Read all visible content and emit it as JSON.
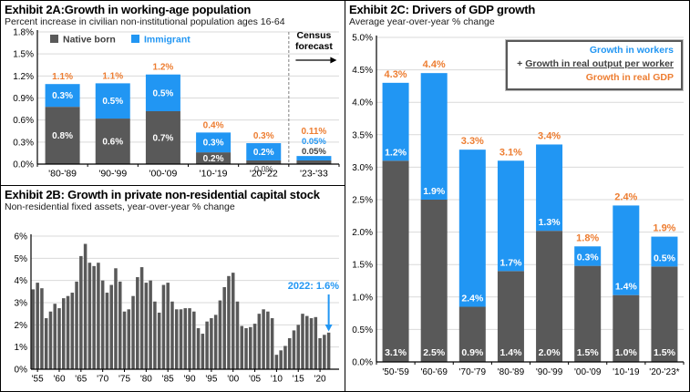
{
  "colors": {
    "blue": "#2196F3",
    "gray": "#595959",
    "orange": "#ED7D31",
    "dark_text": "#404040",
    "grid": "#D9D9D9",
    "axis": "#000000"
  },
  "chart_data": [
    {
      "id": "2A",
      "type": "bar",
      "stacked": true,
      "title": "Exhibit 2A:Growth in working-age population",
      "subtitle": "Percent increase in civilian non-institutional population ages 16-64",
      "categories": [
        "'80-'89",
        "'90-'99",
        "'00-'09",
        "'10-'19",
        "'20-'22",
        "'23-'33"
      ],
      "series": [
        {
          "name": "Native born",
          "color": "gray",
          "values": [
            0.8,
            0.6,
            0.7,
            0.2,
            0.0,
            0.05
          ],
          "labels": [
            "0.8%",
            "0.6%",
            "0.7%",
            "0.2%",
            "0.0%",
            "0.05%"
          ],
          "heights": [
            0.78,
            0.62,
            0.72,
            0.16,
            0.05,
            0.05
          ],
          "label_pos": [
            "in",
            "in",
            "in",
            "in",
            "below",
            "stack"
          ]
        },
        {
          "name": "Immigrant",
          "color": "blue",
          "values": [
            0.3,
            0.5,
            0.5,
            0.3,
            0.2,
            0.05
          ],
          "labels": [
            "0.3%",
            "0.5%",
            "0.5%",
            "0.3%",
            "0.2%",
            "0.05%"
          ],
          "heights": [
            0.31,
            0.48,
            0.5,
            0.27,
            0.235,
            0.06
          ],
          "label_pos": [
            "in",
            "in",
            "in",
            "in",
            "in",
            "stack"
          ]
        }
      ],
      "totals": [
        "1.1%",
        "1.1%",
        "1.2%",
        "0.4%",
        "0.3%",
        "0.11%"
      ],
      "ylim": [
        0,
        1.8
      ],
      "yticks": [
        "0.0%",
        "0.3%",
        "0.6%",
        "0.9%",
        "1.2%",
        "1.5%",
        "1.8%"
      ],
      "forecast_label": "Census forecast",
      "legend_position": "top-in-plot",
      "grid": true
    },
    {
      "id": "2B",
      "type": "bar",
      "title": "Exhibit 2B: Growth in private non-residential capital stock",
      "subtitle": "Non-residential fixed assets, year-over-year % change",
      "start_year": 1954,
      "end_year": 2022,
      "values": [
        3.6,
        3.9,
        3.65,
        2.3,
        2.6,
        2.95,
        2.75,
        3.2,
        3.3,
        3.45,
        3.95,
        5.1,
        5.65,
        4.8,
        4.65,
        4.8,
        4.0,
        3.45,
        3.8,
        4.55,
        3.95,
        2.6,
        2.7,
        3.3,
        4.15,
        4.6,
        3.9,
        4.0,
        3.05,
        2.55,
        3.8,
        3.9,
        3.05,
        2.7,
        2.7,
        2.75,
        2.75,
        2.6,
        1.85,
        1.6,
        2.15,
        2.3,
        2.45,
        3.1,
        3.7,
        4.2,
        4.35,
        3.05,
        1.95,
        1.85,
        1.9,
        2.05,
        2.5,
        2.7,
        2.6,
        2.3,
        0.65,
        0.85,
        1.05,
        1.4,
        1.75,
        2.0,
        2.5,
        2.4,
        2.3,
        2.35,
        1.4,
        1.55,
        1.65
      ],
      "xticks": [
        "'55",
        "'60",
        "'65",
        "'70",
        "'75",
        "'80",
        "'85",
        "'90",
        "'95",
        "'00",
        "'05",
        "'10",
        "'15",
        "'20"
      ],
      "xtick_years": [
        1955,
        1960,
        1965,
        1970,
        1975,
        1980,
        1985,
        1990,
        1995,
        2000,
        2005,
        2010,
        2015,
        2020
      ],
      "ylim": [
        0,
        6
      ],
      "yticks": [
        "0%",
        "1%",
        "2%",
        "3%",
        "4%",
        "5%",
        "6%"
      ],
      "annotation": {
        "text": "2022: 1.6%",
        "year": 2022
      },
      "grid": true
    },
    {
      "id": "2C",
      "type": "bar",
      "stacked": true,
      "title": "Exhibit 2C: Drivers of GDP growth",
      "subtitle": "Average year-over-year % change",
      "categories": [
        "'50-'59",
        "'60-'69",
        "'70-'79",
        "'80-'89",
        "'90-'99",
        "'00-'09",
        "'10-'19",
        "'20-'23*"
      ],
      "series": [
        {
          "name": "Growth in real output per worker",
          "color": "gray",
          "values": [
            3.1,
            2.5,
            0.9,
            1.4,
            2.0,
            1.5,
            1.0,
            1.5
          ],
          "labels": [
            "3.1%",
            "2.5%",
            "0.9%",
            "1.4%",
            "2.0%",
            "1.5%",
            "1.0%",
            "1.5%"
          ],
          "heights": [
            3.1,
            2.5,
            0.85,
            1.4,
            2.02,
            1.48,
            1.03,
            1.47
          ]
        },
        {
          "name": "Growth in workers",
          "color": "blue",
          "values": [
            1.2,
            1.9,
            2.4,
            1.7,
            1.3,
            0.3,
            1.4,
            0.5
          ],
          "labels": [
            "1.2%",
            "1.9%",
            "2.4%",
            "1.7%",
            "1.3%",
            "0.3%",
            "1.4%",
            "0.5%"
          ],
          "heights": [
            1.2,
            1.95,
            2.42,
            1.7,
            1.33,
            0.3,
            1.38,
            0.46
          ]
        }
      ],
      "totals": [
        "4.3%",
        "4.4%",
        "3.3%",
        "3.1%",
        "3.4%",
        "1.8%",
        "2.4%",
        "1.9%"
      ],
      "ylim": [
        0,
        5
      ],
      "yticks": [
        "0.0%",
        "0.5%",
        "1.0%",
        "1.5%",
        "2.0%",
        "2.5%",
        "3.0%",
        "3.5%",
        "4.0%",
        "4.5%",
        "5.0%"
      ],
      "legend": [
        {
          "text": "Growth in workers",
          "color": "blue"
        },
        {
          "prefix": "+ ",
          "text": "Growth in real output per worker",
          "color": "dark",
          "underline": true
        },
        {
          "text": "Growth in real GDP",
          "color": "orange"
        }
      ],
      "legend_position": "top-right-box",
      "grid": true
    }
  ]
}
